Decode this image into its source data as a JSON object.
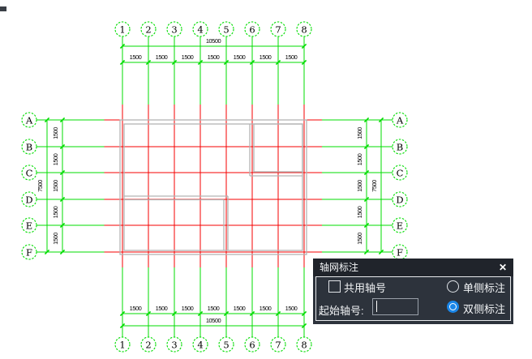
{
  "colors": {
    "axis_green": "#00dd00",
    "grid_red": "#f40000",
    "wall_gray": "#b3b3b3",
    "dim_text": "#000000",
    "bubble_text": "#000000"
  },
  "drawing": {
    "vertical_axis_labels": [
      "1",
      "2",
      "3",
      "4",
      "5",
      "6",
      "7",
      "8"
    ],
    "horizontal_axis_labels": [
      "A",
      "B",
      "C",
      "D",
      "E",
      "F"
    ],
    "top_segment_dims": [
      "1500",
      "1500",
      "1500",
      "1500",
      "1500",
      "1500",
      "1500"
    ],
    "bottom_segment_dims": [
      "1500",
      "1500",
      "1500",
      "1500",
      "1500",
      "1500",
      "1500"
    ],
    "left_segment_dims": [
      "1500",
      "1500",
      "1500",
      "1500",
      "1500"
    ],
    "right_segment_dims": [
      "1500",
      "1500",
      "1500",
      "1500",
      "1500"
    ],
    "top_total_dim": "10500",
    "bottom_total_dim": "10500",
    "left_total_dim": "7500",
    "right_total_dim": "7500"
  },
  "dialog": {
    "title": "轴网标注",
    "close_icon": "✕",
    "checkbox_label": "共用轴号",
    "checkbox_checked": false,
    "radio_single_label": "单侧标注",
    "radio_double_label": "双侧标注",
    "selected_radio": "double",
    "input_label": "起始轴号:",
    "input_value": ""
  }
}
